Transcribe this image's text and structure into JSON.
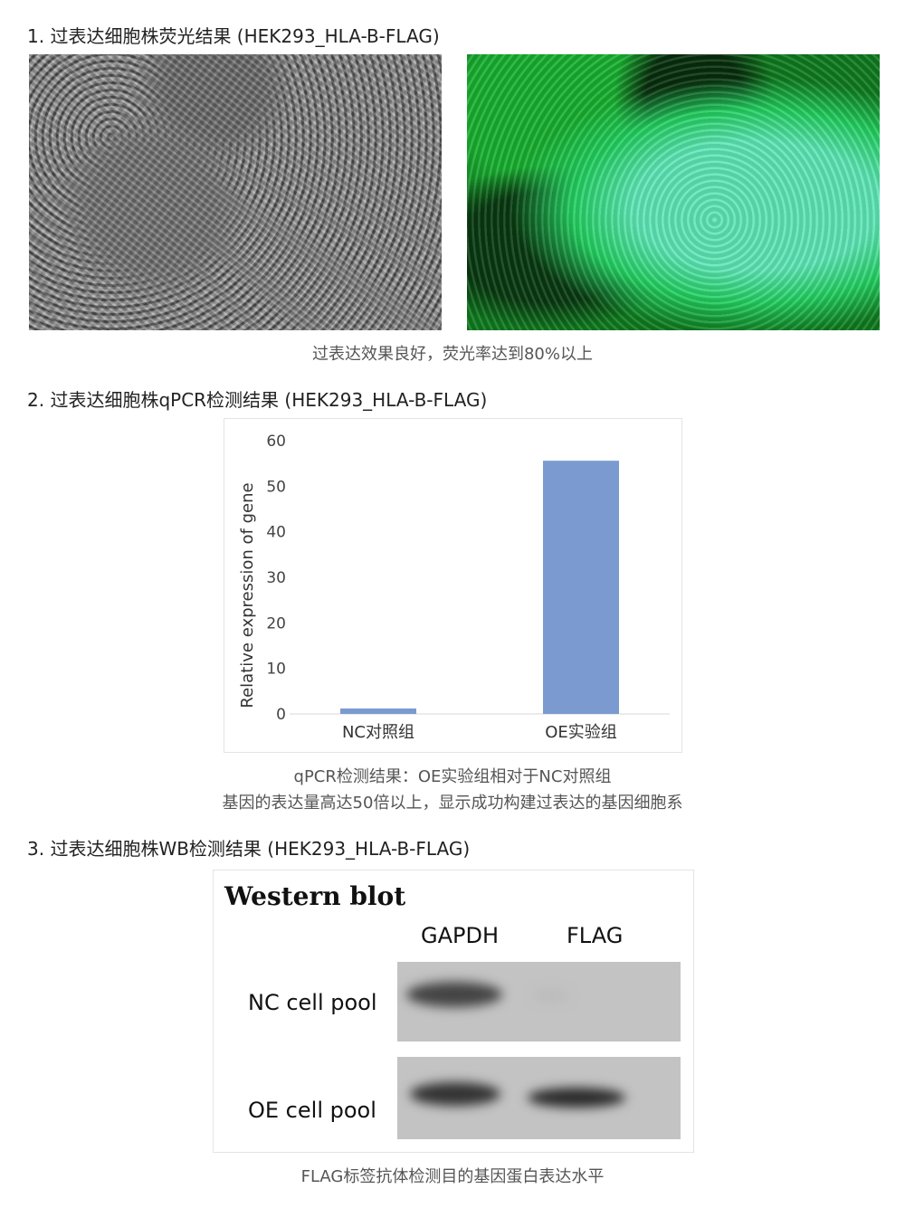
{
  "section1": {
    "title": "1. 过表达细胞株荧光结果 (HEK293_HLA-B-FLAG)",
    "caption": "过表达效果良好，荧光率达到80%以上"
  },
  "section2": {
    "title": "2. 过表达细胞株qPCR检测结果 (HEK293_HLA-B-FLAG)",
    "caption_line1": "qPCR检测结果：OE实验组相对于NC对照组",
    "caption_line2": "基因的表达量高达50倍以上，显示成功构建过表达的基因细胞系"
  },
  "section3": {
    "title": "3. 过表达细胞株WB检测结果 (HEK293_HLA-B-FLAG)",
    "caption": "FLAG标签抗体检测目的基因蛋白表达水平",
    "wb": {
      "title": "Western blot",
      "columns": [
        "GAPDH",
        "FLAG"
      ],
      "rows": [
        "NC cell pool",
        "OE cell pool"
      ]
    }
  },
  "chart_data": {
    "type": "bar",
    "categories": [
      "NC对照组",
      "OE实验组"
    ],
    "values": [
      1.2,
      55.6
    ],
    "title": "",
    "xlabel": "",
    "ylabel": "Relative expression of gene",
    "ylim": [
      0,
      60
    ],
    "yticks": [
      "0",
      "10",
      "20",
      "30",
      "40",
      "50",
      "60"
    ],
    "bar_color": "#7b9bd0",
    "grid": false
  }
}
